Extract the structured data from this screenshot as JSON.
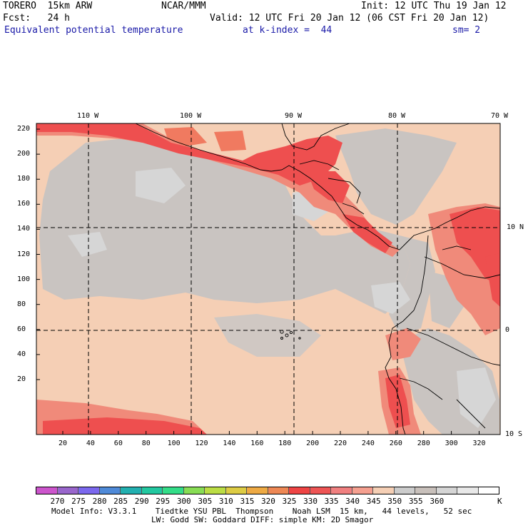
{
  "header": {
    "model": "TORERO  15km ARW",
    "org": "NCAR/MMM",
    "init": "Init: 12 UTC Thu 19 Jan 12",
    "fcst": "Fcst:   24 h",
    "valid": "Valid: 12 UTC Fri 20 Jan 12 (06 CST Fri 20 Jan 12)",
    "field": "Equivalent potential temperature",
    "kindex": "at k-index =  44",
    "sm": "sm= 2"
  },
  "map": {
    "lon_labels": [
      "110 W",
      "100 W",
      "90 W",
      "80 W",
      "70 W"
    ],
    "lat_labels": [
      "10 N",
      "0",
      "10 S"
    ],
    "y_ticks": [
      "220",
      "200",
      "180",
      "160",
      "140",
      "120",
      "100",
      "80",
      "60",
      "40",
      "20"
    ],
    "x_ticks": [
      "20",
      "40",
      "60",
      "80",
      "100",
      "120",
      "140",
      "160",
      "180",
      "200",
      "220",
      "240",
      "260",
      "280",
      "300",
      "320"
    ]
  },
  "colorbar": {
    "colors": [
      "#cc55cc",
      "#9966cc",
      "#7b68ee",
      "#4f8ad8",
      "#22b0b0",
      "#22c8a0",
      "#33dd88",
      "#88dd55",
      "#bbdd44",
      "#ddcc44",
      "#eeaa44",
      "#ee8855",
      "#ee4444",
      "#ee5555",
      "#f08080",
      "#f5a090",
      "#f5cfb5",
      "#cccccc",
      "#c8c0bb",
      "#d5d5d5",
      "#e8e8e8",
      "#ffffff"
    ],
    "labels": [
      "270",
      "275",
      "280",
      "285",
      "290",
      "295",
      "300",
      "305",
      "310",
      "315",
      "320",
      "325",
      "330",
      "335",
      "340",
      "345",
      "350",
      "355",
      "360",
      "K"
    ],
    "units": "K"
  },
  "footer": {
    "line1": "Model Info: V3.3.1    Tiedtke YSU PBL  Thompson    Noah LSM  15 km,   44 levels,   52 sec",
    "line2": "LW: Godd SW: Goddard DIFF: simple KM: 2D Smagor"
  }
}
